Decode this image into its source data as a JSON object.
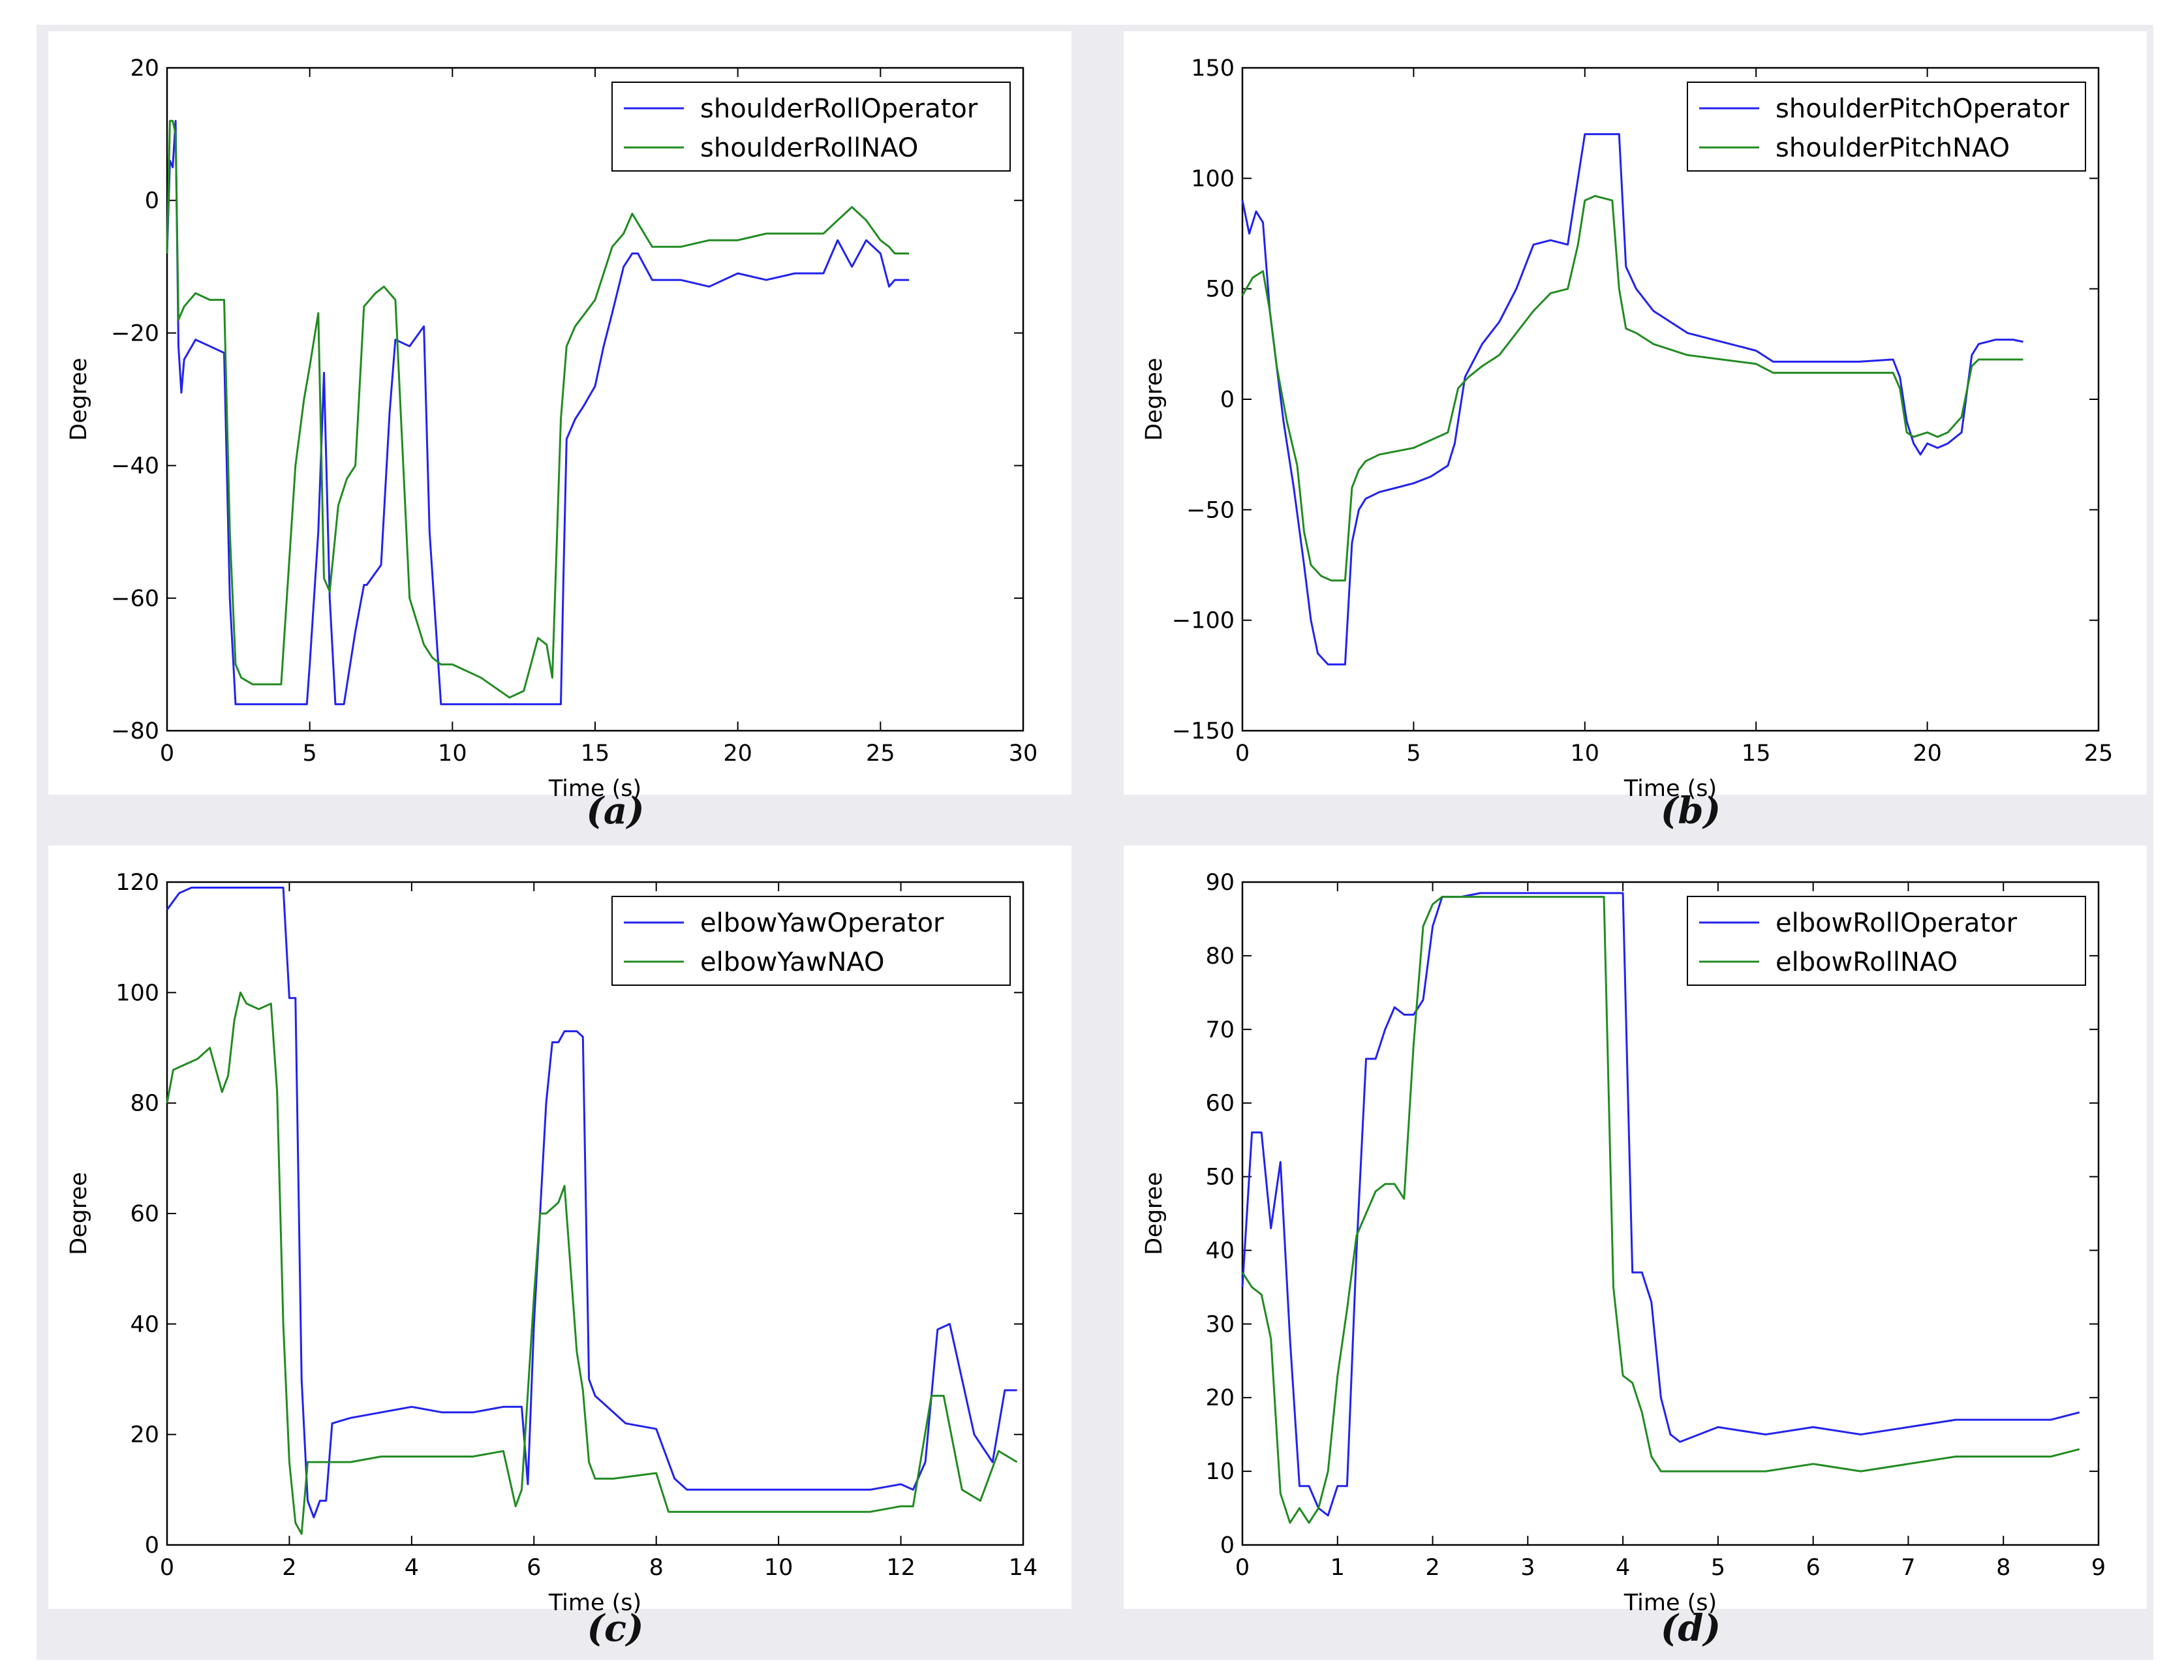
{
  "colors": {
    "operator": "#2222ee",
    "nao": "#228B22"
  },
  "captions": {
    "a": "(a)",
    "b": "(b)",
    "c": "(c)",
    "d": "(d)"
  },
  "chart_data": [
    {
      "type": "line",
      "xlabel": "Time (s)",
      "ylabel": "Degree",
      "xlim": [
        0,
        30
      ],
      "ylim": [
        -80,
        20
      ],
      "xticks": [
        0,
        5,
        10,
        15,
        20,
        25,
        30
      ],
      "yticks": [
        20,
        0,
        -20,
        -40,
        -60,
        -80
      ],
      "legend_position": "top-right",
      "series": [
        {
          "name": "shoulderRollOperator",
          "x": [
            0,
            0.1,
            0.2,
            0.3,
            0.4,
            0.5,
            0.6,
            1.0,
            1.5,
            2.0,
            2.2,
            2.4,
            2.5,
            3.0,
            4.0,
            4.9,
            5.0,
            5.3,
            5.5,
            5.7,
            5.9,
            6.0,
            6.2,
            6.6,
            6.9,
            7.0,
            7.5,
            7.8,
            8.0,
            8.5,
            9.0,
            9.2,
            9.6,
            10,
            11,
            12,
            13,
            13.8,
            13.9,
            14.0,
            14.3,
            14.6,
            15,
            15.3,
            15.6,
            16,
            16.3,
            16.5,
            17,
            18,
            19,
            20,
            21,
            22,
            23,
            23.5,
            24,
            24.5,
            25,
            25.3,
            25.5,
            26
          ],
          "values": [
            -8,
            6,
            5,
            12,
            -22,
            -29,
            -24,
            -21,
            -22,
            -23,
            -60,
            -76,
            -76,
            -76,
            -76,
            -76,
            -70,
            -50,
            -26,
            -60,
            -76,
            -76,
            -76,
            -65,
            -58,
            -58,
            -55,
            -32,
            -21,
            -22,
            -19,
            -50,
            -76,
            -76,
            -76,
            -76,
            -76,
            -76,
            -55,
            -36,
            -33,
            -31,
            -28,
            -22,
            -17,
            -10,
            -8,
            -8,
            -12,
            -12,
            -13,
            -11,
            -12,
            -11,
            -11,
            -6,
            -10,
            -6,
            -8,
            -13,
            -12,
            -12
          ]
        },
        {
          "name": "shoulderRollNAO",
          "x": [
            0,
            0.1,
            0.2,
            0.3,
            0.4,
            0.6,
            1.0,
            1.5,
            2.0,
            2.2,
            2.4,
            2.6,
            3.0,
            3.5,
            4.0,
            4.5,
            4.8,
            5.0,
            5.3,
            5.5,
            5.7,
            6.0,
            6.3,
            6.6,
            6.9,
            7.3,
            7.6,
            8.0,
            8.5,
            9.0,
            9.3,
            9.6,
            10,
            11,
            12,
            12.5,
            13,
            13.3,
            13.5,
            13.8,
            14.0,
            14.3,
            15,
            15.3,
            15.6,
            16,
            16.3,
            17,
            18,
            19,
            20,
            21,
            22,
            23,
            23.5,
            24,
            24.5,
            25,
            25.3,
            25.5,
            26
          ],
          "values": [
            -8,
            12,
            12,
            10,
            -18,
            -16,
            -14,
            -15,
            -15,
            -50,
            -70,
            -72,
            -73,
            -73,
            -73,
            -40,
            -30,
            -25,
            -17,
            -57,
            -59,
            -46,
            -42,
            -40,
            -16,
            -14,
            -13,
            -15,
            -60,
            -67,
            -69,
            -70,
            -70,
            -72,
            -75,
            -74,
            -66,
            -67,
            -72,
            -33,
            -22,
            -19,
            -15,
            -11,
            -7,
            -5,
            -2,
            -7,
            -7,
            -6,
            -6,
            -5,
            -5,
            -5,
            -3,
            -1,
            -3,
            -6,
            -7,
            -8,
            -8
          ]
        }
      ]
    },
    {
      "type": "line",
      "xlabel": "Time (s)",
      "ylabel": "Degree",
      "xlim": [
        0,
        25
      ],
      "ylim": [
        -150,
        150
      ],
      "xticks": [
        0,
        5,
        10,
        15,
        20,
        25
      ],
      "yticks": [
        150,
        100,
        50,
        0,
        -50,
        -100,
        -150
      ],
      "legend_position": "top-right",
      "series": [
        {
          "name": "shoulderPitchOperator",
          "x": [
            0,
            0.2,
            0.4,
            0.6,
            0.8,
            1.0,
            1.2,
            1.5,
            1.8,
            2.0,
            2.2,
            2.5,
            3.0,
            3.2,
            3.4,
            3.6,
            4.0,
            4.5,
            5.0,
            5.5,
            6.0,
            6.2,
            6.5,
            7.0,
            7.5,
            8.0,
            8.5,
            9.0,
            9.5,
            9.8,
            10.0,
            10.5,
            11,
            11.2,
            11.5,
            12,
            12.5,
            13,
            14,
            15,
            15.5,
            16,
            17,
            18,
            19,
            19.2,
            19.4,
            19.6,
            19.8,
            20.0,
            20.3,
            20.6,
            21.0,
            21.3,
            21.5,
            22,
            22.5,
            22.8
          ],
          "values": [
            90,
            75,
            85,
            80,
            40,
            15,
            -10,
            -40,
            -75,
            -100,
            -115,
            -120,
            -120,
            -65,
            -50,
            -45,
            -42,
            -40,
            -38,
            -35,
            -30,
            -20,
            10,
            25,
            35,
            50,
            70,
            72,
            70,
            100,
            120,
            120,
            120,
            60,
            50,
            40,
            35,
            30,
            26,
            22,
            17,
            17,
            17,
            17,
            18,
            10,
            -10,
            -20,
            -25,
            -20,
            -22,
            -20,
            -15,
            20,
            25,
            27,
            27,
            26
          ]
        },
        {
          "name": "shoulderPitchNAO",
          "x": [
            0,
            0.3,
            0.6,
            0.8,
            1.0,
            1.3,
            1.6,
            1.8,
            2.0,
            2.3,
            2.6,
            3.0,
            3.2,
            3.4,
            3.6,
            4.0,
            5.0,
            6.0,
            6.3,
            6.6,
            7.0,
            7.5,
            8.0,
            8.5,
            9.0,
            9.5,
            9.8,
            10.0,
            10.3,
            10.8,
            11.0,
            11.2,
            11.5,
            12,
            13,
            14,
            15,
            15.5,
            16,
            17,
            18,
            19,
            19.2,
            19.4,
            19.6,
            20,
            20.3,
            20.6,
            21,
            21.3,
            21.5,
            22,
            22.8
          ],
          "values": [
            47,
            55,
            58,
            40,
            15,
            -10,
            -30,
            -60,
            -75,
            -80,
            -82,
            -82,
            -40,
            -32,
            -28,
            -25,
            -22,
            -15,
            5,
            10,
            15,
            20,
            30,
            40,
            48,
            50,
            70,
            90,
            92,
            90,
            50,
            32,
            30,
            25,
            20,
            18,
            16,
            12,
            12,
            12,
            12,
            12,
            5,
            -15,
            -17,
            -15,
            -17,
            -15,
            -8,
            15,
            18,
            18,
            18
          ]
        }
      ]
    },
    {
      "type": "line",
      "xlabel": "Time (s)",
      "ylabel": "Degree",
      "xlim": [
        0,
        14
      ],
      "ylim": [
        0,
        120
      ],
      "xticks": [
        0,
        2,
        4,
        6,
        8,
        10,
        12,
        14
      ],
      "yticks": [
        120,
        100,
        80,
        60,
        40,
        20,
        0
      ],
      "legend_position": "top-right",
      "series": [
        {
          "name": "elbowYawOperator",
          "x": [
            0,
            0.2,
            0.4,
            1.0,
            1.5,
            1.9,
            2.0,
            2.1,
            2.2,
            2.3,
            2.4,
            2.5,
            2.6,
            2.7,
            3.0,
            3.5,
            4.0,
            4.5,
            5.0,
            5.5,
            5.8,
            5.9,
            6.0,
            6.2,
            6.3,
            6.4,
            6.5,
            6.7,
            6.8,
            6.9,
            7.0,
            7.2,
            7.5,
            8.0,
            8.3,
            8.5,
            9.0,
            9.5,
            10,
            10.5,
            11,
            11.5,
            12,
            12.2,
            12.4,
            12.6,
            12.8,
            13.0,
            13.2,
            13.5,
            13.7,
            13.9
          ],
          "values": [
            115,
            118,
            119,
            119,
            119,
            119,
            99,
            99,
            30,
            8,
            5,
            8,
            8,
            22,
            23,
            24,
            25,
            24,
            24,
            25,
            25,
            11,
            40,
            80,
            91,
            91,
            93,
            93,
            92,
            30,
            27,
            25,
            22,
            21,
            12,
            10,
            10,
            10,
            10,
            10,
            10,
            10,
            11,
            10,
            15,
            39,
            40,
            30,
            20,
            15,
            28,
            28
          ]
        },
        {
          "name": "elbowYawNAO",
          "x": [
            0,
            0.1,
            0.3,
            0.5,
            0.7,
            0.9,
            1.0,
            1.1,
            1.2,
            1.3,
            1.5,
            1.7,
            1.8,
            1.9,
            2.0,
            2.1,
            2.2,
            2.3,
            2.4,
            2.6,
            3.0,
            3.5,
            4.0,
            4.5,
            5.0,
            5.5,
            5.7,
            5.8,
            6.0,
            6.1,
            6.2,
            6.4,
            6.5,
            6.7,
            6.8,
            6.9,
            7.0,
            7.3,
            8.0,
            8.2,
            8.5,
            9.0,
            9.5,
            10,
            10.5,
            11,
            11.5,
            12,
            12.2,
            12.5,
            12.7,
            13.0,
            13.3,
            13.6,
            13.9
          ],
          "values": [
            80,
            86,
            87,
            88,
            90,
            82,
            85,
            95,
            100,
            98,
            97,
            98,
            82,
            40,
            15,
            4,
            2,
            15,
            15,
            15,
            15,
            16,
            16,
            16,
            16,
            17,
            7,
            10,
            45,
            60,
            60,
            62,
            65,
            35,
            28,
            15,
            12,
            12,
            13,
            6,
            6,
            6,
            6,
            6,
            6,
            6,
            6,
            7,
            7,
            27,
            27,
            10,
            8,
            17,
            15
          ]
        }
      ]
    },
    {
      "type": "line",
      "xlabel": "Time (s)",
      "ylabel": "Degree",
      "xlim": [
        0,
        9
      ],
      "ylim": [
        0,
        90
      ],
      "xticks": [
        0,
        1,
        2,
        3,
        4,
        5,
        6,
        7,
        8,
        9
      ],
      "yticks": [
        90,
        80,
        70,
        60,
        50,
        40,
        30,
        20,
        10,
        0
      ],
      "legend_position": "top-right",
      "series": [
        {
          "name": "elbowRollOperator",
          "x": [
            0,
            0.1,
            0.2,
            0.3,
            0.4,
            0.5,
            0.6,
            0.7,
            0.8,
            0.9,
            1.0,
            1.1,
            1.2,
            1.3,
            1.4,
            1.5,
            1.6,
            1.7,
            1.8,
            1.9,
            2.0,
            2.1,
            2.2,
            2.3,
            2.5,
            3.0,
            3.5,
            4.0,
            4.1,
            4.2,
            4.3,
            4.4,
            4.5,
            4.6,
            5.0,
            5.5,
            6.0,
            6.5,
            7.0,
            7.5,
            8.0,
            8.5,
            8.8
          ],
          "values": [
            35,
            56,
            56,
            43,
            52,
            28,
            8,
            8,
            5,
            4,
            8,
            8,
            40,
            66,
            66,
            70,
            73,
            72,
            72,
            74,
            84,
            88,
            88,
            88,
            88.5,
            88.5,
            88.5,
            88.5,
            37,
            37,
            33,
            20,
            15,
            14,
            16,
            15,
            16,
            15,
            16,
            17,
            17,
            17,
            18
          ]
        },
        {
          "name": "elbowRollNAO",
          "x": [
            0,
            0.1,
            0.2,
            0.3,
            0.4,
            0.5,
            0.6,
            0.7,
            0.8,
            0.9,
            1.0,
            1.1,
            1.2,
            1.3,
            1.4,
            1.5,
            1.6,
            1.7,
            1.8,
            1.9,
            2.0,
            2.1,
            2.2,
            2.5,
            3.0,
            3.5,
            3.8,
            3.9,
            4.0,
            4.1,
            4.2,
            4.3,
            4.4,
            4.5,
            5.0,
            5.5,
            6.0,
            6.5,
            7.0,
            7.5,
            8.0,
            8.5,
            8.8
          ],
          "values": [
            37,
            35,
            34,
            28,
            7,
            3,
            5,
            3,
            5,
            10,
            23,
            32,
            42,
            45,
            48,
            49,
            49,
            47,
            68,
            84,
            87,
            88,
            88,
            88,
            88,
            88,
            88,
            35,
            23,
            22,
            18,
            12,
            10,
            10,
            10,
            10,
            11,
            10,
            11,
            12,
            12,
            12,
            13
          ]
        }
      ]
    }
  ]
}
